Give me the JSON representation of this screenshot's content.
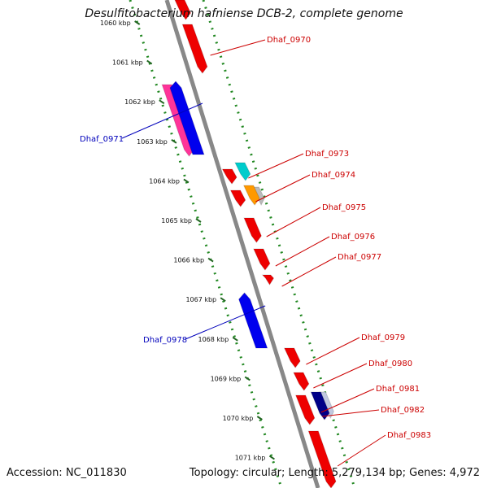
{
  "title": "Desulfitobacterium hafniense DCB-2, complete genome",
  "footer": {
    "accession": "Accession: NC_011830",
    "summary": "Topology: circular; Length: 5,279,134 bp; Genes: 4,972"
  },
  "colors": {
    "backbone": "#888888",
    "tick_dots": "#228822",
    "forward_label": "#cc0000",
    "reverse_label": "#0000bb"
  },
  "ticks": [
    {
      "label": "1060 kbp",
      "kbp": 1060
    },
    {
      "label": "1061 kbp",
      "kbp": 1061
    },
    {
      "label": "1062 kbp",
      "kbp": 1062
    },
    {
      "label": "1063 kbp",
      "kbp": 1063
    },
    {
      "label": "1064 kbp",
      "kbp": 1064
    },
    {
      "label": "1065 kbp",
      "kbp": 1065
    },
    {
      "label": "1066 kbp",
      "kbp": 1066
    },
    {
      "label": "1067 kbp",
      "kbp": 1067
    },
    {
      "label": "1068 kbp",
      "kbp": 1068
    },
    {
      "label": "1069 kbp",
      "kbp": 1069
    },
    {
      "label": "1070 kbp",
      "kbp": 1070
    },
    {
      "label": "1071 kbp",
      "kbp": 1071
    }
  ],
  "genes": [
    {
      "id": "Dhaf_0970",
      "strand": "forward",
      "color": "#ee0000",
      "labeled": true
    },
    {
      "id": "Dhaf_0971",
      "strand": "reverse",
      "color": "#0000ee",
      "labeled": true
    },
    {
      "id": "Dhaf_0973",
      "strand": "forward",
      "color": "#00cccc",
      "labeled": true
    },
    {
      "id": "Dhaf_0974",
      "strand": "forward",
      "color": "#ff9900",
      "labeled": true
    },
    {
      "id": "Dhaf_0975",
      "strand": "forward",
      "color": "#ee0000",
      "labeled": true
    },
    {
      "id": "Dhaf_0976",
      "strand": "forward",
      "color": "#ee0000",
      "labeled": true
    },
    {
      "id": "Dhaf_0977",
      "strand": "forward",
      "color": "#ee0000",
      "labeled": true
    },
    {
      "id": "Dhaf_0978",
      "strand": "reverse",
      "color": "#0000ee",
      "labeled": true
    },
    {
      "id": "Dhaf_0979",
      "strand": "forward",
      "color": "#ee0000",
      "labeled": true
    },
    {
      "id": "Dhaf_0980",
      "strand": "forward",
      "color": "#ee0000",
      "labeled": true
    },
    {
      "id": "Dhaf_0981",
      "strand": "forward",
      "color": "#000088",
      "labeled": true
    },
    {
      "id": "Dhaf_0982",
      "strand": "forward",
      "color": "#ee0000",
      "labeled": true
    },
    {
      "id": "Dhaf_0983",
      "strand": "forward",
      "color": "#ee0000",
      "labeled": true
    }
  ]
}
